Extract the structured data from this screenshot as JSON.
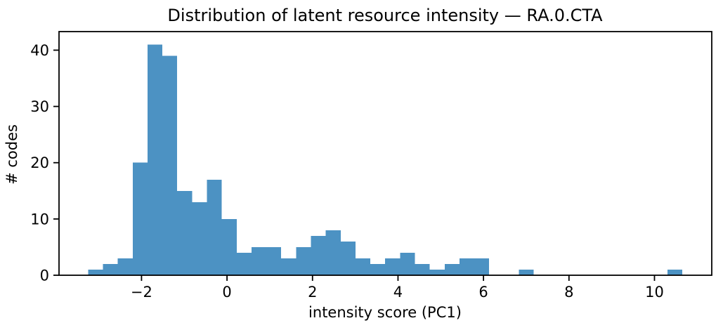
{
  "figure": {
    "background": "#ffffff"
  },
  "chart_data": {
    "type": "bar",
    "subtype": "histogram",
    "title": "Distribution of latent resource intensity — RA.0.CTA",
    "xlabel": "intensity score (PC1)",
    "ylabel": "# codes",
    "bar_color": "#4c92c3",
    "axis_color": "#000000",
    "text_color": "#000000",
    "grid": false,
    "legend": null,
    "bin_start": -3.25,
    "bin_width": 0.3475,
    "counts": [
      1,
      2,
      3,
      20,
      41,
      39,
      15,
      13,
      17,
      10,
      4,
      5,
      5,
      3,
      5,
      7,
      8,
      6,
      3,
      2,
      3,
      4,
      2,
      1,
      2,
      3,
      3,
      0,
      0,
      1,
      0,
      0,
      0,
      0,
      0,
      0,
      0,
      0,
      0,
      1
    ],
    "xlim": [
      -3.93,
      11.34
    ],
    "ylim": [
      0,
      43.3
    ],
    "xticks": [
      -2,
      0,
      2,
      4,
      6,
      8,
      10
    ],
    "xtick_labels": [
      "−2",
      "0",
      "2",
      "4",
      "6",
      "8",
      "10"
    ],
    "yticks": [
      0,
      10,
      20,
      30,
      40
    ],
    "ytick_labels": [
      "0",
      "10",
      "20",
      "30",
      "40"
    ]
  }
}
